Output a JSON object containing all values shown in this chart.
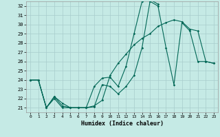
{
  "xlabel": "Humidex (Indice chaleur)",
  "xlim": [
    -0.5,
    23.5
  ],
  "ylim": [
    20.5,
    32.5
  ],
  "yticks": [
    21,
    22,
    23,
    24,
    25,
    26,
    27,
    28,
    29,
    30,
    31,
    32
  ],
  "xticks": [
    0,
    1,
    2,
    3,
    4,
    5,
    6,
    7,
    8,
    9,
    10,
    11,
    12,
    13,
    14,
    15,
    16,
    17,
    18,
    19,
    20,
    21,
    22,
    23
  ],
  "bg_color": "#c5eae5",
  "grid_color": "#a8cccc",
  "line_color": "#006655",
  "line1_x": [
    0,
    1,
    2,
    3,
    4,
    5,
    6,
    7,
    8,
    9,
    10,
    11,
    12,
    13,
    14,
    15,
    16,
    17,
    18,
    19,
    20,
    21,
    22,
    23
  ],
  "line1_y": [
    24.0,
    24.0,
    21.0,
    22.2,
    21.5,
    21.0,
    21.0,
    21.0,
    21.1,
    23.5,
    23.3,
    22.5,
    23.3,
    24.5,
    27.5,
    32.5,
    32.0,
    27.5,
    23.5,
    30.2,
    29.3,
    26.0,
    26.0,
    25.8
  ],
  "line2_x": [
    0,
    1,
    2,
    3,
    4,
    5,
    6,
    7,
    8,
    9,
    10,
    11,
    12,
    13,
    14,
    15,
    16
  ],
  "line2_y": [
    24.0,
    24.0,
    21.0,
    22.2,
    21.2,
    21.0,
    21.0,
    21.0,
    23.3,
    24.2,
    24.3,
    23.3,
    25.5,
    29.0,
    32.5,
    32.7,
    32.2
  ],
  "line3_x": [
    0,
    1,
    2,
    3,
    4,
    5,
    6,
    7,
    8,
    9,
    10,
    11,
    12,
    13,
    14,
    15,
    16,
    17,
    18,
    19,
    20,
    21,
    22,
    23
  ],
  "line3_y": [
    24.0,
    24.0,
    21.0,
    22.0,
    21.0,
    21.0,
    21.0,
    21.0,
    21.2,
    21.8,
    24.5,
    25.8,
    26.8,
    27.8,
    28.5,
    29.0,
    29.8,
    30.2,
    30.5,
    30.3,
    29.5,
    29.3,
    26.0,
    25.8
  ]
}
